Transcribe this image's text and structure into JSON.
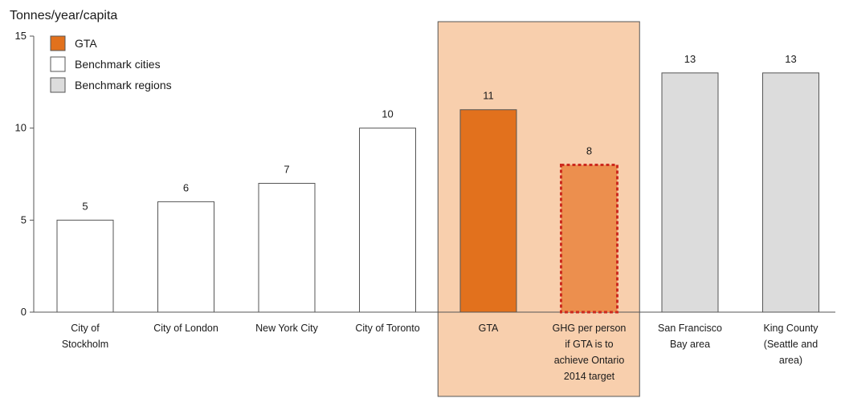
{
  "chart_data": {
    "type": "bar",
    "ylabel": "Tonnes/year/capita",
    "ylim": [
      0,
      15
    ],
    "yticks": [
      0,
      5,
      10,
      15
    ],
    "categories": [
      [
        "City of",
        "Stockholm"
      ],
      [
        "City of London"
      ],
      [
        "New York City"
      ],
      [
        "City of Toronto"
      ],
      [
        "GTA"
      ],
      [
        "GHG per person",
        "if GTA is to",
        "achieve Ontario",
        "2014 target"
      ],
      [
        "San Francisco",
        "Bay area"
      ],
      [
        "King County",
        "(Seattle and",
        "area)"
      ]
    ],
    "values": [
      5,
      6,
      7,
      10,
      11,
      8,
      13,
      13
    ],
    "bar_groups": [
      "city",
      "city",
      "city",
      "city",
      "gta",
      "target",
      "region",
      "region"
    ],
    "legend": [
      {
        "label": "GTA",
        "group": "gta"
      },
      {
        "label": "Benchmark cities",
        "group": "city"
      },
      {
        "label": "Benchmark regions",
        "group": "region"
      }
    ],
    "highlight_band": {
      "from_category": 4,
      "to_category": 5
    },
    "colors": {
      "gta": "#e2711d",
      "target": "#ec8f4e",
      "target_border": "#cc2a1e",
      "city": "#ffffff",
      "region": "#dcdcdc",
      "band": "#f8cfad",
      "stroke": "#555555"
    },
    "grid": false,
    "legend_position": "top-left"
  }
}
